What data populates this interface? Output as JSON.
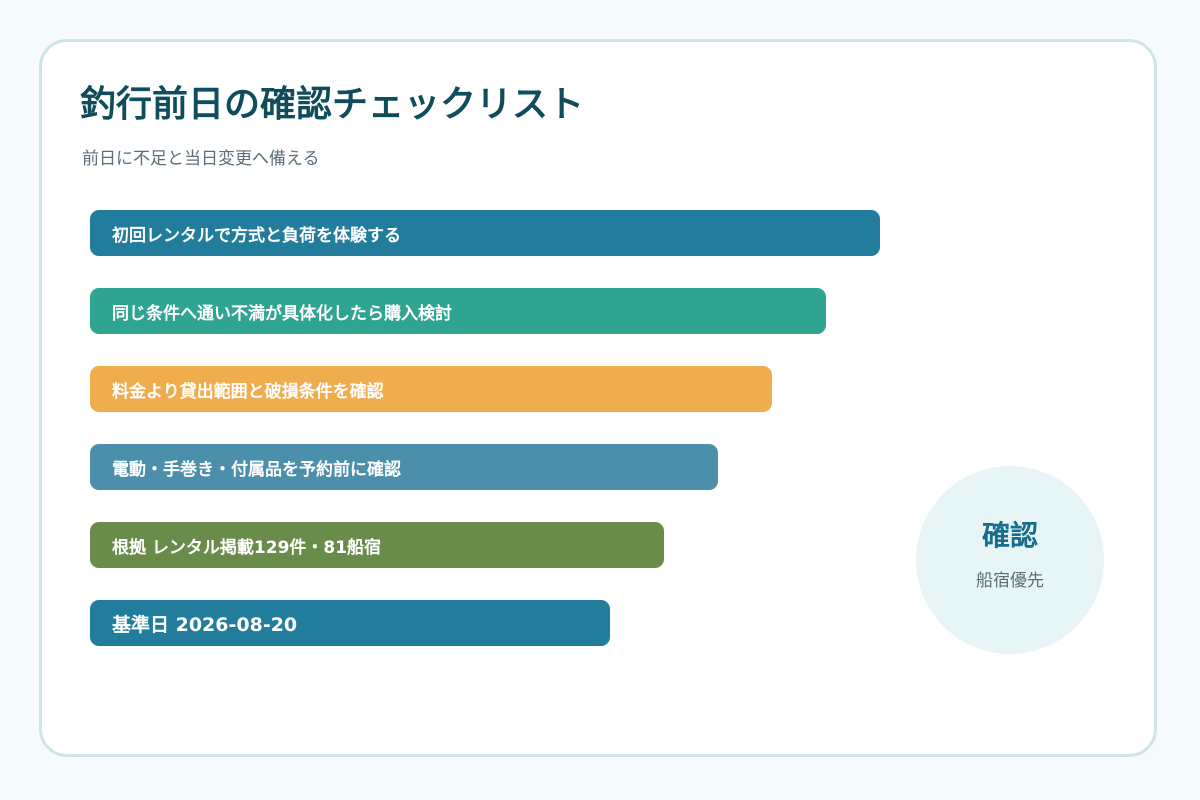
{
  "title": "釣行前日の確認チェックリスト",
  "subtitle": "前日に不足と当日変更へ備える",
  "checklist": [
    {
      "label": "初回レンタルで方式と負荷を体験する",
      "color": "#227c9c"
    },
    {
      "label": "同じ条件へ通い不満が具体化したら購入検討",
      "color": "#2fa490"
    },
    {
      "label": "料金より貸出範囲と破損条件を確認",
      "color": "#f0ad4e"
    },
    {
      "label": "電動・手巻き・付属品を予約前に確認",
      "color": "#4c8faa"
    },
    {
      "label": "根拠 レンタル掲載129件・81船宿",
      "color": "#6a8c4a"
    },
    {
      "label": "基準日 2026-08-20",
      "color": "#227c9c"
    }
  ],
  "badge": {
    "title": "確認",
    "subtitle": "船宿優先"
  },
  "colors": {
    "title": "#0f4c5c",
    "subtitle": "#5b6f7a",
    "card_border": "#cfe3ea",
    "badge_bg": "#e8f5f6",
    "badge_title": "#176f8c"
  }
}
